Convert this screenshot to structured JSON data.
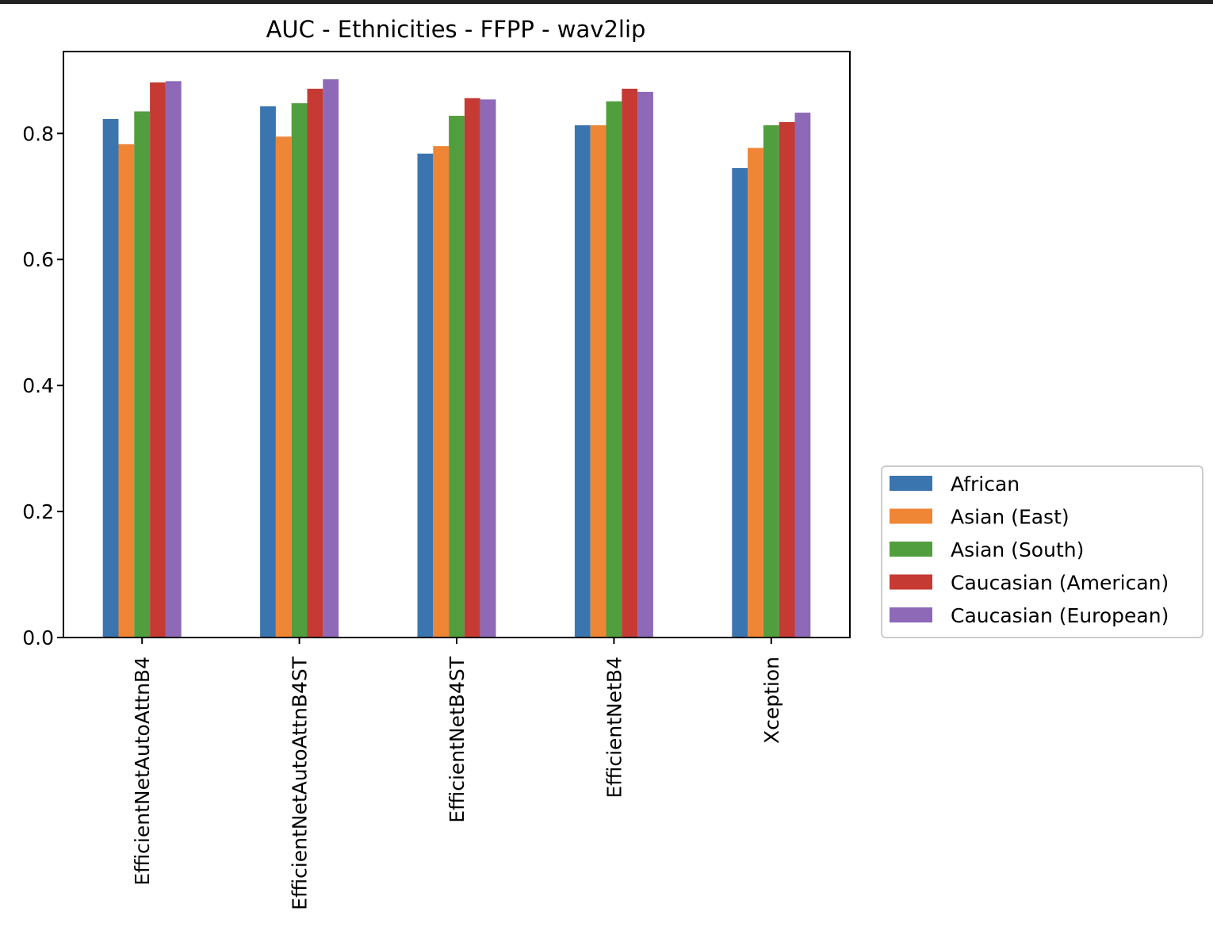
{
  "chart_data": {
    "type": "bar",
    "title": "AUC - Ethnicities - FFPP - wav2lip",
    "xlabel": "",
    "ylabel": "",
    "ylim": [
      0,
      0.93
    ],
    "yticks": [
      "0.0",
      "0.2",
      "0.4",
      "0.6",
      "0.8"
    ],
    "categories": [
      "EfficientNetAutoAttnB4",
      "EfficientNetAutoAttnB4ST",
      "EfficientNetB4ST",
      "EfficientNetB4",
      "Xception"
    ],
    "series": [
      {
        "name": "African",
        "color": "#3b75af",
        "values": [
          0.823,
          0.843,
          0.768,
          0.813,
          0.745
        ]
      },
      {
        "name": "Asian (East)",
        "color": "#ef8636",
        "values": [
          0.783,
          0.795,
          0.78,
          0.813,
          0.777
        ]
      },
      {
        "name": "Asian (South)",
        "color": "#519e3e",
        "values": [
          0.835,
          0.848,
          0.828,
          0.851,
          0.813
        ]
      },
      {
        "name": "Caucasian (American)",
        "color": "#c53a32",
        "values": [
          0.881,
          0.871,
          0.856,
          0.871,
          0.818
        ]
      },
      {
        "name": "Caucasian (European)",
        "color": "#8d69b8",
        "values": [
          0.883,
          0.886,
          0.854,
          0.866,
          0.833
        ]
      }
    ],
    "grid": false,
    "legend_position": "right"
  }
}
